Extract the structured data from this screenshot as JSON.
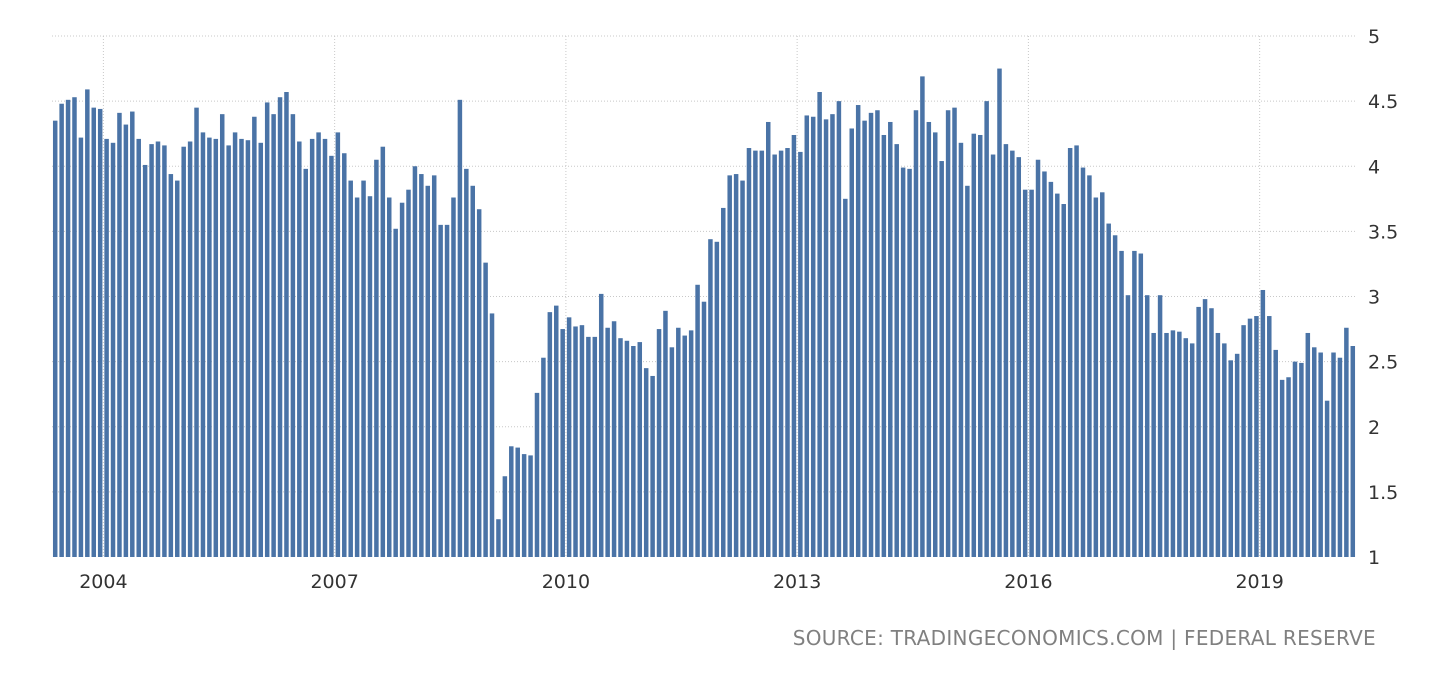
{
  "chart_data": {
    "type": "bar",
    "title": "",
    "xlabel": "",
    "ylabel": "",
    "color": "#4a73a6",
    "grid": true,
    "ylim": [
      1,
      5
    ],
    "yticks": [
      "1",
      "1.5",
      "2",
      "2.5",
      "3",
      "3.5",
      "4",
      "4.5",
      "5"
    ],
    "xticks": [
      "2004",
      "2007",
      "2010",
      "2013",
      "2016",
      "2019"
    ],
    "start": "2003-05",
    "series": [
      {
        "values": [
          4.35,
          4.48,
          4.51,
          4.53,
          4.22,
          4.59,
          4.45,
          4.44,
          4.21,
          4.18,
          4.41,
          4.32,
          4.42,
          4.21,
          4.01,
          4.17,
          4.19,
          4.16,
          3.94,
          3.89,
          4.15,
          4.19,
          4.45,
          4.26,
          4.22,
          4.21,
          4.4,
          4.16,
          4.26,
          4.21,
          4.2,
          4.38,
          4.18,
          4.49,
          4.4,
          4.53,
          4.57,
          4.4,
          4.19,
          3.98,
          4.21,
          4.26,
          4.21,
          4.08,
          4.26,
          4.1,
          3.89,
          3.76,
          3.89,
          3.77,
          4.05,
          4.15,
          3.76,
          3.52,
          3.72,
          3.82,
          4.0,
          3.94,
          3.85,
          3.93,
          3.55,
          3.55,
          3.76,
          4.51,
          3.98,
          3.85,
          3.67,
          3.26,
          2.87,
          1.29,
          1.62,
          1.85,
          1.84,
          1.79,
          1.78,
          2.26,
          2.53,
          2.88,
          2.93,
          2.75,
          2.84,
          2.77,
          2.78,
          2.69,
          2.69,
          3.02,
          2.76,
          2.81,
          2.68,
          2.66,
          2.62,
          2.65,
          2.45,
          2.39,
          2.75,
          2.89,
          2.61,
          2.76,
          2.7,
          2.74,
          3.09,
          2.96,
          3.44,
          3.42,
          3.68,
          3.93,
          3.94,
          3.89,
          4.14,
          4.12,
          4.12,
          4.34,
          4.09,
          4.12,
          4.14,
          4.24,
          4.11,
          4.39,
          4.38,
          4.57,
          4.36,
          4.4,
          4.5,
          3.75,
          4.29,
          4.47,
          4.35,
          4.41,
          4.43,
          4.24,
          4.34,
          4.17,
          3.99,
          3.98,
          4.43,
          4.69,
          4.34,
          4.26,
          4.04,
          4.43,
          4.45,
          4.18,
          3.85,
          4.25,
          4.24,
          4.5,
          4.09,
          4.75,
          4.17,
          4.12,
          4.07,
          3.82,
          3.82,
          4.05,
          3.96,
          3.88,
          3.79,
          3.71,
          4.14,
          4.16,
          3.99,
          3.93,
          3.76,
          3.8,
          3.56,
          3.47,
          3.35,
          3.01,
          3.35,
          3.33,
          3.01,
          2.72,
          3.01,
          2.72,
          2.74,
          2.73,
          2.68,
          2.64,
          2.92,
          2.98,
          2.91,
          2.72,
          2.64,
          2.51,
          2.56,
          2.78,
          2.83,
          2.85,
          3.05,
          2.85,
          2.59,
          2.36,
          2.38,
          2.5,
          2.49,
          2.72,
          2.61,
          2.57,
          2.2,
          2.57,
          2.53,
          2.76,
          2.62
        ]
      }
    ]
  },
  "footer": {
    "source": "SOURCE: TRADINGECONOMICS.COM | FEDERAL RESERVE"
  }
}
